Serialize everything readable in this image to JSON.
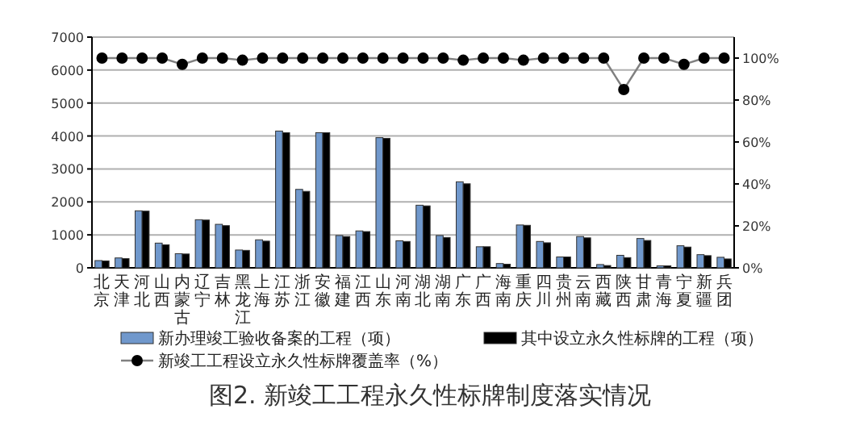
{
  "chart_data": {
    "type": "bar",
    "title": "图2. 新竣工工程永久性标牌制度落实情况",
    "categories": [
      "北京",
      "天津",
      "河北",
      "山西",
      "内蒙古",
      "辽宁",
      "吉林",
      "黑龙江",
      "上海",
      "江苏",
      "浙江",
      "安徽",
      "福建",
      "江西",
      "山东",
      "河南",
      "湖北",
      "湖南",
      "广东",
      "广西",
      "海南",
      "重庆",
      "四川",
      "贵州",
      "云南",
      "西藏",
      "陕西",
      "甘肃",
      "青海",
      "宁夏",
      "新疆",
      "兵团"
    ],
    "series": [
      {
        "name": "新办理竣工验收备案的工程（项）",
        "color": "#7098cc",
        "values": [
          220,
          300,
          1730,
          750,
          430,
          1460,
          1320,
          540,
          850,
          4150,
          2380,
          4100,
          980,
          1120,
          3950,
          820,
          1900,
          980,
          2610,
          640,
          130,
          1300,
          800,
          330,
          950,
          100,
          380,
          890,
          60,
          670,
          400,
          320
        ]
      },
      {
        "name": "其中设立永久性标牌的工程（项）",
        "color": "#000000",
        "values": [
          210,
          280,
          1720,
          700,
          420,
          1450,
          1280,
          530,
          810,
          4100,
          2320,
          4100,
          950,
          1100,
          3930,
          800,
          1880,
          920,
          2550,
          640,
          110,
          1290,
          760,
          330,
          910,
          70,
          310,
          830,
          60,
          630,
          370,
          270
        ]
      },
      {
        "name": "新竣工工程设立永久性标牌覆盖率（%）",
        "type": "line",
        "axis": "y2",
        "color": "#808080",
        "values": [
          100,
          100,
          100,
          100,
          97,
          100,
          100,
          99,
          100,
          100,
          100,
          100,
          100,
          100,
          100,
          100,
          100,
          100,
          99,
          100,
          100,
          99,
          100,
          100,
          100,
          100,
          85,
          100,
          100,
          97,
          100,
          100
        ]
      }
    ],
    "ylim": [
      0,
      7000
    ],
    "yticks": [
      0,
      1000,
      2000,
      3000,
      4000,
      5000,
      6000,
      7000
    ],
    "y2lim": [
      0,
      110
    ],
    "y2ticks": [
      {
        "value": 0,
        "label": "0%"
      },
      {
        "value": 20,
        "label": "20%"
      },
      {
        "value": 40,
        "label": "40%"
      },
      {
        "value": 60,
        "label": "60%"
      },
      {
        "value": 80,
        "label": "80%"
      },
      {
        "value": 100,
        "label": "100%"
      }
    ],
    "grid": "y",
    "legend": "bottom",
    "marker": "circle"
  }
}
